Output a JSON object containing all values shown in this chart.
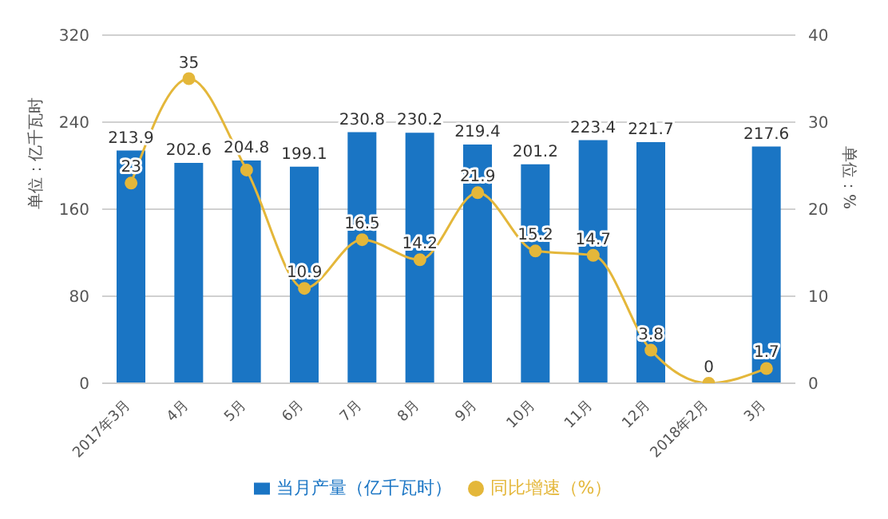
{
  "chart_data": {
    "type": "bar",
    "categories": [
      "2017年3月",
      "4月",
      "5月",
      "6月",
      "7月",
      "8月",
      "9月",
      "10月",
      "11月",
      "12月",
      "2018年2月",
      "3月"
    ],
    "series": [
      {
        "name": "当月产量（亿千瓦时）",
        "color": "#1a75c4",
        "values": [
          213.9,
          202.6,
          204.8,
          199.1,
          230.8,
          230.2,
          219.4,
          201.2,
          223.4,
          221.7,
          null,
          217.6
        ],
        "value_labels": [
          "213.9",
          "202.6",
          "204.8",
          "199.1",
          "230.8",
          "230.2",
          "219.4",
          "201.2",
          "223.4",
          "221.7",
          null,
          "217.6"
        ]
      },
      {
        "name": "同比增速（%）",
        "type": "line",
        "axis": "y2",
        "color": "#e4b73a",
        "values": [
          23,
          35,
          24.5,
          10.9,
          16.5,
          14.2,
          21.9,
          15.2,
          14.7,
          3.8,
          0,
          1.7
        ],
        "value_labels": [
          "23",
          "35",
          null,
          "10.9",
          "16.5",
          "14.2",
          "21.9",
          "15.2",
          "14.7",
          "3.8",
          "0",
          "1.7"
        ]
      }
    ],
    "ylabel": "单位：亿千瓦时",
    "y2label": "单位：%",
    "ylim": [
      0,
      320
    ],
    "yticks": [
      0,
      80,
      160,
      240,
      320
    ],
    "y2lim": [
      0,
      40
    ],
    "y2ticks": [
      0,
      10,
      20,
      30,
      40
    ],
    "grid": "y",
    "legend": "bottom",
    "marker": "circle"
  }
}
